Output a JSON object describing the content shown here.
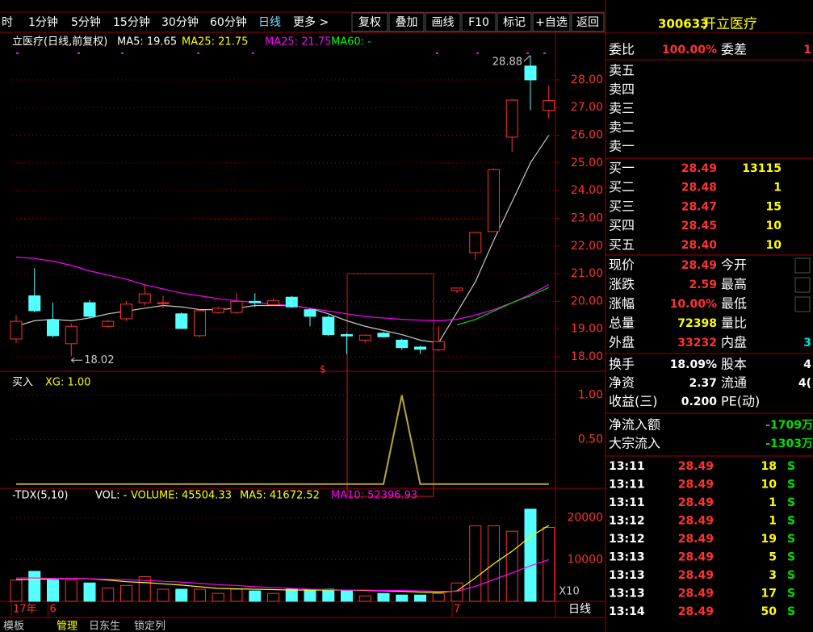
{
  "toolbar": {
    "left_cut": "时",
    "periods": [
      "1分钟",
      "5分钟",
      "15分钟",
      "30分钟",
      "60分钟",
      "日线",
      "更多 >"
    ],
    "buttons": [
      "复权",
      "叠加",
      "画线",
      "F10",
      "标记",
      "+自选",
      "返回"
    ]
  },
  "stock": {
    "code": "300633",
    "name": "开立医疗"
  },
  "chart": {
    "categories": [
      "17年",
      null,
      "6",
      null,
      null,
      null,
      null,
      null,
      null,
      null,
      null,
      null,
      null,
      null,
      null,
      null,
      null,
      null,
      null,
      null,
      null,
      null,
      null,
      null,
      "7",
      null,
      null,
      null,
      null,
      null
    ],
    "period_label": "日线",
    "bottom_tabs": [
      "模板",
      "管理",
      "日东生",
      "锁定列"
    ],
    "price": {
      "title": "立医疗(日线,前复权)",
      "legend": [
        {
          "text": "MA5: 19.65",
          "color": "#ffffff"
        },
        {
          "text": "MA25: 21.75",
          "color": "#ffff00"
        },
        {
          "text": "MA25: 21.75",
          "color": "#ff00ff"
        },
        {
          "text": "MA60: -",
          "color": "#00ff00"
        }
      ],
      "ylim": [
        17.62,
        29.66
      ],
      "yticks": [
        {
          "value": 28,
          "label": "28.00"
        },
        {
          "value": 27,
          "label": "27.00"
        },
        {
          "value": 26,
          "label": "26.00"
        },
        {
          "value": 25,
          "label": "25.00"
        },
        {
          "value": 24,
          "label": "24.00"
        },
        {
          "value": 23,
          "label": "23.00"
        },
        {
          "value": 22,
          "label": "22.00"
        },
        {
          "value": 21,
          "label": "21.00"
        },
        {
          "value": 20,
          "label": "20.00"
        },
        {
          "value": 19,
          "label": "19.00"
        },
        {
          "value": 18,
          "label": "18.00"
        }
      ],
      "open": [
        18.64,
        20.2,
        19.34,
        18.47,
        19.95,
        19.1,
        19.37,
        19.95,
        19.95,
        19.55,
        18.76,
        19.6,
        19.6,
        20.0,
        19.88,
        20.15,
        19.7,
        19.43,
        18.8,
        18.6,
        18.85,
        18.6,
        18.35,
        18.25,
        20.39,
        21.76,
        22.52,
        25.93,
        28.5,
        26.9
      ],
      "close": [
        19.28,
        19.66,
        18.76,
        19.1,
        19.46,
        19.28,
        19.9,
        20.27,
        19.95,
        19.02,
        19.66,
        19.75,
        20.0,
        19.95,
        20.02,
        19.8,
        19.46,
        18.8,
        18.75,
        18.78,
        18.72,
        18.33,
        18.27,
        18.55,
        20.48,
        22.49,
        24.76,
        27.27,
        28.0,
        27.25
      ],
      "high": [
        19.5,
        21.2,
        19.95,
        19.2,
        20.05,
        19.35,
        20.0,
        20.6,
        20.2,
        19.6,
        19.7,
        19.8,
        20.3,
        20.3,
        20.1,
        20.2,
        19.75,
        19.5,
        18.85,
        18.8,
        18.9,
        18.65,
        18.4,
        19.1,
        20.5,
        22.5,
        24.8,
        27.3,
        28.88,
        27.8
      ],
      "low": [
        18.5,
        19.6,
        18.7,
        18.02,
        19.4,
        19.05,
        19.3,
        19.85,
        19.75,
        19.0,
        18.7,
        19.55,
        19.55,
        19.8,
        19.85,
        19.75,
        19.1,
        18.75,
        18.1,
        18.5,
        18.7,
        18.25,
        18.1,
        18.2,
        20.3,
        21.5,
        22.5,
        25.4,
        26.9,
        26.6
      ],
      "up_color": "#ff3232",
      "down_color": "#54ffff",
      "ma": [
        {
          "name": "MA5",
          "color": "#c8c8c8",
          "values": [
            19.1,
            19.3,
            19.35,
            19.3,
            19.4,
            19.55,
            19.65,
            19.75,
            19.85,
            19.8,
            19.7,
            19.7,
            19.75,
            19.85,
            19.85,
            19.85,
            19.75,
            19.55,
            19.3,
            19.1,
            18.95,
            18.8,
            18.6,
            18.5,
            19.6,
            20.7,
            22.2,
            23.6,
            25.0,
            26.0
          ]
        },
        {
          "name": "MA25",
          "color": "#ff00ff",
          "values": [
            21.6,
            21.55,
            21.45,
            21.3,
            21.1,
            20.95,
            20.8,
            20.6,
            20.45,
            20.3,
            20.2,
            20.1,
            20.02,
            19.96,
            19.9,
            19.85,
            19.75,
            19.65,
            19.55,
            19.45,
            19.4,
            19.35,
            19.32,
            19.3,
            19.35,
            19.5,
            19.7,
            19.95,
            20.25,
            20.6
          ]
        },
        {
          "name": "MA60",
          "color": "#00e000",
          "values": [
            null,
            null,
            null,
            null,
            null,
            null,
            null,
            null,
            null,
            null,
            null,
            null,
            null,
            null,
            null,
            null,
            null,
            null,
            null,
            null,
            null,
            null,
            null,
            null,
            19.15,
            19.35,
            19.65,
            19.95,
            20.2,
            20.5
          ]
        }
      ],
      "signal": "$",
      "grid": true
    },
    "indicator": {
      "title": "买入",
      "legend": "XG: 1.00",
      "ylim": [
        -0.03,
        1.25
      ],
      "yticks": [
        {
          "value": 1,
          "label": "1.00"
        },
        {
          "value": 0.5,
          "label": "0.50"
        }
      ],
      "color": "#b8a830",
      "values": [
        0,
        0,
        0,
        0,
        0,
        0,
        0,
        0,
        0,
        0,
        0,
        0,
        0,
        0,
        0,
        0,
        0,
        0,
        0,
        0,
        0,
        1,
        0,
        0,
        0,
        0,
        0,
        0,
        0,
        0
      ]
    },
    "volume": {
      "title": "-TDX(5,10)",
      "legend": [
        {
          "text": "VOL: -",
          "color": "#ffffff"
        },
        {
          "text": "VOLUME: 45504.33",
          "color": "#ffff00"
        },
        {
          "text": "MA5: 41672.52",
          "color": "#ffff00"
        },
        {
          "text": "MA10: 52396.93",
          "color": "#ff00ff"
        }
      ],
      "ylim": [
        0,
        26700
      ],
      "yticks": [
        20000,
        10000
      ],
      "unit": "X10",
      "values": [
        5100,
        7200,
        5100,
        5100,
        4400,
        3200,
        3800,
        5900,
        2900,
        2900,
        2900,
        1900,
        2900,
        2500,
        1900,
        2900,
        2900,
        2900,
        2500,
        1300,
        1900,
        1500,
        1500,
        1900,
        4400,
        18100,
        18100,
        16800,
        22100,
        17700
      ],
      "ma": [
        {
          "name": "MA5",
          "color": "#ffff00",
          "values": [
            5200,
            5300,
            5400,
            5500,
            5400,
            5100,
            4700,
            4500,
            4200,
            3900,
            3500,
            3100,
            3000,
            2900,
            2800,
            2700,
            2700,
            2700,
            2700,
            2600,
            2500,
            2400,
            2200,
            2100,
            2500,
            5600,
            9000,
            12000,
            15500,
            18200
          ]
        },
        {
          "name": "MA10",
          "color": "#ff00ff",
          "values": [
            5600,
            5600,
            5500,
            5500,
            5400,
            5300,
            5200,
            5000,
            4800,
            4600,
            4300,
            4000,
            3800,
            3500,
            3300,
            3100,
            2900,
            2800,
            2700,
            2700,
            2600,
            2600,
            2500,
            2400,
            2400,
            3600,
            5200,
            6800,
            8500,
            10000
          ]
        }
      ]
    }
  },
  "quote": {
    "weibi": {
      "label": "委比",
      "value": "100.00%",
      "label2": "委差",
      "value2": "1"
    },
    "asks": [
      "卖五",
      "卖四",
      "卖三",
      "卖二",
      "卖一"
    ],
    "bids": [
      {
        "label": "买一",
        "price": "28.49",
        "vol": "13115"
      },
      {
        "label": "买二",
        "price": "28.48",
        "vol": "1"
      },
      {
        "label": "买三",
        "price": "28.47",
        "vol": "15"
      },
      {
        "label": "买四",
        "price": "28.45",
        "vol": "10"
      },
      {
        "label": "买五",
        "price": "28.40",
        "vol": "10"
      }
    ],
    "stats": [
      {
        "label": "现价",
        "value": "28.49",
        "label2": "今开"
      },
      {
        "label": "涨跌",
        "value": "2.59",
        "label2": "最高"
      },
      {
        "label": "涨幅",
        "value": "10.00%",
        "label2": "最低"
      },
      {
        "label": "总量",
        "value": "72398",
        "label2": "量比"
      },
      {
        "label": "外盘",
        "value": "33232",
        "label2": "内盘",
        "value2": "3"
      }
    ],
    "fund": [
      {
        "label": "换手",
        "value": "18.09%",
        "label2": "股本",
        "value2": "4"
      },
      {
        "label": "净资",
        "value": "2.37",
        "label2": "流通",
        "value2": "4("
      },
      {
        "label": "收益(三)",
        "value": "0.200",
        "label2": "PE(动)"
      }
    ],
    "flow": [
      {
        "label": "净流入额",
        "value": "-1709万"
      },
      {
        "label": "大宗流入",
        "value": "-1303万"
      }
    ],
    "trades": [
      {
        "time": "13:11",
        "price": "28.49",
        "vol": "18",
        "flag": "S"
      },
      {
        "time": "13:11",
        "price": "28.49",
        "vol": "10",
        "flag": "S"
      },
      {
        "time": "13:11",
        "price": "28.49",
        "vol": "1",
        "flag": "S"
      },
      {
        "time": "13:12",
        "price": "28.49",
        "vol": "1",
        "flag": "S"
      },
      {
        "time": "13:12",
        "price": "28.49",
        "vol": "19",
        "flag": "S"
      },
      {
        "time": "13:13",
        "price": "28.49",
        "vol": "5",
        "flag": "S"
      },
      {
        "time": "13:13",
        "price": "28.49",
        "vol": "3",
        "flag": "S"
      },
      {
        "time": "13:13",
        "price": "28.49",
        "vol": "17",
        "flag": "S"
      },
      {
        "time": "13:14",
        "price": "28.49",
        "vol": "50",
        "flag": "S"
      }
    ]
  }
}
